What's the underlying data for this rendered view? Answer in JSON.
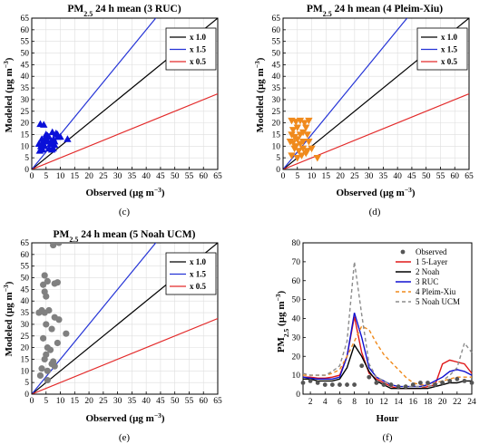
{
  "chart_data": [
    {
      "type": "scatter",
      "panel_label": "(c)",
      "title": {
        "pre": "PM",
        "sub": "2.5",
        "post": " 24 h mean (3 RUC)"
      },
      "xlabel": {
        "pre": "Observed (µg m",
        "sup": "−3",
        "post": ")"
      },
      "ylabel": {
        "pre": "Modeled (µg m",
        "sup": "−3",
        "post": ")"
      },
      "xlim": [
        0,
        65
      ],
      "ylim": [
        0,
        65
      ],
      "xticks": [
        0,
        5,
        10,
        15,
        20,
        25,
        30,
        35,
        40,
        45,
        50,
        55,
        60,
        65
      ],
      "yticks": [
        0,
        5,
        10,
        15,
        20,
        25,
        30,
        35,
        40,
        45,
        50,
        55,
        60,
        65
      ],
      "marker": "triangle-up",
      "marker_color": "#0a10d8",
      "reference_lines": [
        {
          "label": "x 1.0",
          "slope": 1.0,
          "color": "#000000"
        },
        {
          "label": "x 1.5",
          "slope": 1.5,
          "color": "#2433d6"
        },
        {
          "label": "x 0.5",
          "slope": 0.5,
          "color": "#e32a2a"
        }
      ],
      "legend_position": "top-right",
      "points": [
        [
          3,
          19.5
        ],
        [
          4.2,
          19.2
        ],
        [
          4,
          12
        ],
        [
          3.2,
          10
        ],
        [
          2.5,
          11
        ],
        [
          3.8,
          8.5
        ],
        [
          5,
          15
        ],
        [
          5.5,
          14.5
        ],
        [
          6,
          14
        ],
        [
          6.5,
          11
        ],
        [
          7,
          8.5
        ],
        [
          7.2,
          16
        ],
        [
          7.6,
          13
        ],
        [
          8,
          12
        ],
        [
          8.5,
          15.5
        ],
        [
          9,
          15
        ],
        [
          5,
          12
        ],
        [
          4.5,
          10
        ],
        [
          6,
          9
        ],
        [
          8,
          10.5
        ],
        [
          9.2,
          14
        ],
        [
          2.8,
          8
        ],
        [
          3.8,
          11
        ],
        [
          6.8,
          12
        ],
        [
          12.5,
          13
        ],
        [
          5.5,
          12.5
        ],
        [
          7.5,
          9
        ],
        [
          4.8,
          13.5
        ],
        [
          10,
          14
        ],
        [
          3.5,
          13
        ]
      ]
    },
    {
      "type": "scatter",
      "panel_label": "(d)",
      "title": {
        "pre": "PM",
        "sub": "2.5",
        "post": " 24 h mean (4 Pleim-Xiu)"
      },
      "xlabel": {
        "pre": "Observed (µg m",
        "sup": "−3",
        "post": ")"
      },
      "ylabel": {
        "pre": "Modeled (µg m",
        "sup": "−3",
        "post": ")"
      },
      "xlim": [
        0,
        65
      ],
      "ylim": [
        0,
        65
      ],
      "xticks": [
        0,
        5,
        10,
        15,
        20,
        25,
        30,
        35,
        40,
        45,
        50,
        55,
        60,
        65
      ],
      "yticks": [
        0,
        5,
        10,
        15,
        20,
        25,
        30,
        35,
        40,
        45,
        50,
        55,
        60,
        65
      ],
      "marker": "triangle-down",
      "marker_color": "#f08a1c",
      "reference_lines": [
        {
          "label": "x 1.0",
          "slope": 1.0,
          "color": "#000000"
        },
        {
          "label": "x 1.5",
          "slope": 1.5,
          "color": "#2433d6"
        },
        {
          "label": "x 0.5",
          "slope": 0.5,
          "color": "#e32a2a"
        }
      ],
      "legend_position": "top-right",
      "points": [
        [
          3,
          21
        ],
        [
          4.5,
          20.5
        ],
        [
          6,
          21
        ],
        [
          7.5,
          20
        ],
        [
          9,
          21
        ],
        [
          3.5,
          17
        ],
        [
          5,
          18
        ],
        [
          8,
          18
        ],
        [
          3,
          15
        ],
        [
          4,
          14
        ],
        [
          6,
          15
        ],
        [
          7,
          16
        ],
        [
          8.5,
          15
        ],
        [
          2.5,
          12
        ],
        [
          3.5,
          11.5
        ],
        [
          5,
          13
        ],
        [
          6,
          11
        ],
        [
          7,
          12
        ],
        [
          9,
          12
        ],
        [
          4,
          9
        ],
        [
          5.5,
          8
        ],
        [
          7,
          9
        ],
        [
          8.5,
          8
        ],
        [
          10,
          9
        ],
        [
          3,
          6
        ],
        [
          5,
          5
        ],
        [
          6.5,
          6
        ],
        [
          8,
          7
        ],
        [
          12,
          5
        ],
        [
          4.5,
          10
        ]
      ]
    },
    {
      "type": "scatter",
      "panel_label": "(e)",
      "title": {
        "pre": "PM",
        "sub": "2.5",
        "post": " 24 h mean (5 Noah UCM)"
      },
      "xlabel": {
        "pre": "Observed (µg m",
        "sup": "−3",
        "post": ")"
      },
      "ylabel": {
        "pre": "Modeled (µg m",
        "sup": "−3",
        "post": ")"
      },
      "xlim": [
        0,
        65
      ],
      "ylim": [
        0,
        65
      ],
      "xticks": [
        0,
        5,
        10,
        15,
        20,
        25,
        30,
        35,
        40,
        45,
        50,
        55,
        60,
        65
      ],
      "yticks": [
        0,
        5,
        10,
        15,
        20,
        25,
        30,
        35,
        40,
        45,
        50,
        55,
        60,
        65
      ],
      "marker": "circle",
      "marker_color": "#808080",
      "reference_lines": [
        {
          "label": "x 1.0",
          "slope": 1.0,
          "color": "#000000"
        },
        {
          "label": "x 1.5",
          "slope": 1.5,
          "color": "#2433d6"
        },
        {
          "label": "x 0.5",
          "slope": 0.5,
          "color": "#e32a2a"
        }
      ],
      "legend_position": "top-right",
      "points": [
        [
          7.5,
          64
        ],
        [
          9.5,
          65
        ],
        [
          4.5,
          51
        ],
        [
          5.5,
          48.5
        ],
        [
          4,
          47
        ],
        [
          8,
          47.5
        ],
        [
          9,
          48
        ],
        [
          4.5,
          44
        ],
        [
          5,
          42
        ],
        [
          3.5,
          36
        ],
        [
          4.5,
          35
        ],
        [
          6,
          36
        ],
        [
          2.5,
          35
        ],
        [
          8,
          33
        ],
        [
          9.5,
          32
        ],
        [
          5,
          30
        ],
        [
          7,
          28
        ],
        [
          12,
          26
        ],
        [
          4,
          24
        ],
        [
          9,
          22
        ],
        [
          5.5,
          20
        ],
        [
          6.5,
          19
        ],
        [
          5,
          17
        ],
        [
          4.5,
          15
        ],
        [
          7.5,
          14
        ],
        [
          7,
          13
        ],
        [
          3.5,
          11
        ],
        [
          5.5,
          10
        ],
        [
          8,
          12
        ],
        [
          3,
          8
        ],
        [
          5.5,
          6
        ]
      ]
    },
    {
      "type": "line",
      "panel_label": "(f)",
      "xlabel": {
        "pre": "Hour",
        "sup": "",
        "post": ""
      },
      "ylabel": {
        "pre": "PM",
        "sub": "2.5",
        "post": " (µg m",
        "sup": "−3",
        "post2": ")"
      },
      "xlim": [
        1,
        24
      ],
      "ylim": [
        0,
        80
      ],
      "xticks": [
        2,
        4,
        6,
        8,
        10,
        12,
        14,
        16,
        18,
        20,
        22,
        24
      ],
      "yticks": [
        0,
        10,
        20,
        30,
        40,
        50,
        60,
        70,
        80
      ],
      "legend_position": "top-right",
      "observed": {
        "name": "Observed",
        "color": "#555555",
        "x": [
          1,
          2,
          3,
          4,
          5,
          6,
          7,
          8,
          9,
          10,
          11,
          12,
          13,
          14,
          15,
          16,
          17,
          18,
          19,
          20,
          21,
          22,
          23,
          24
        ],
        "y": [
          6,
          7,
          6,
          5,
          5,
          5,
          5,
          5,
          15,
          9,
          6,
          5,
          5,
          4,
          4,
          5,
          6,
          6,
          5,
          6,
          7,
          8,
          7,
          6
        ]
      },
      "series": [
        {
          "name": "1 5-Layer",
          "color": "#e01818",
          "dash": "",
          "x": [
            1,
            2,
            3,
            4,
            5,
            6,
            7,
            8,
            9,
            10,
            11,
            12,
            13,
            14,
            15,
            16,
            17,
            18,
            19,
            20,
            21,
            22,
            23,
            24
          ],
          "y": [
            9,
            9,
            8.5,
            8.5,
            9,
            10,
            20,
            41,
            22,
            11,
            8,
            6,
            4,
            3,
            3,
            3,
            3,
            4,
            5,
            16,
            18,
            17,
            16,
            11
          ]
        },
        {
          "name": "2 Noah",
          "color": "#000000",
          "dash": "",
          "x": [
            1,
            2,
            3,
            4,
            5,
            6,
            7,
            8,
            9,
            10,
            11,
            12,
            13,
            14,
            15,
            16,
            17,
            18,
            19,
            20,
            21,
            22,
            23,
            24
          ],
          "y": [
            8,
            8,
            7,
            7,
            7,
            8,
            14,
            26,
            20,
            12,
            7,
            5,
            3,
            3,
            3,
            3,
            3,
            3,
            4,
            5,
            6,
            6,
            7,
            7
          ]
        },
        {
          "name": "3 RUC",
          "color": "#1010d0",
          "dash": "",
          "x": [
            1,
            2,
            3,
            4,
            5,
            6,
            7,
            8,
            9,
            10,
            11,
            12,
            13,
            14,
            15,
            16,
            17,
            18,
            19,
            20,
            21,
            22,
            23,
            24
          ],
          "y": [
            9,
            8.5,
            8,
            8,
            8,
            9,
            20,
            43,
            30,
            14,
            9,
            7,
            5,
            4,
            4,
            4,
            4,
            5,
            7,
            9,
            12,
            13,
            12,
            10
          ]
        },
        {
          "name": "4 Pleim-Xiu",
          "color": "#f08a1c",
          "dash": "4,3",
          "x": [
            1,
            2,
            3,
            4,
            5,
            6,
            7,
            8,
            9,
            10,
            11,
            12,
            13,
            14,
            15,
            16,
            17,
            18,
            19,
            20,
            21,
            22,
            23,
            24
          ],
          "y": [
            10,
            10,
            10,
            10,
            11,
            13,
            20,
            28,
            36,
            34,
            27,
            21,
            17,
            13,
            9,
            6,
            5,
            5,
            6,
            7,
            8,
            9,
            9,
            9
          ]
        },
        {
          "name": "5 Noah UCM",
          "color": "#8c8c8c",
          "dash": "4,3",
          "x": [
            1,
            2,
            3,
            4,
            5,
            6,
            7,
            8,
            9,
            10,
            11,
            12,
            13,
            14,
            15,
            16,
            17,
            18,
            19,
            20,
            21,
            22,
            23,
            24
          ],
          "y": [
            11,
            10,
            10,
            10,
            12,
            15,
            28,
            70,
            42,
            16,
            9,
            7,
            5,
            4,
            4,
            4,
            4,
            4,
            5,
            7,
            10,
            14,
            27,
            22
          ]
        }
      ]
    }
  ]
}
